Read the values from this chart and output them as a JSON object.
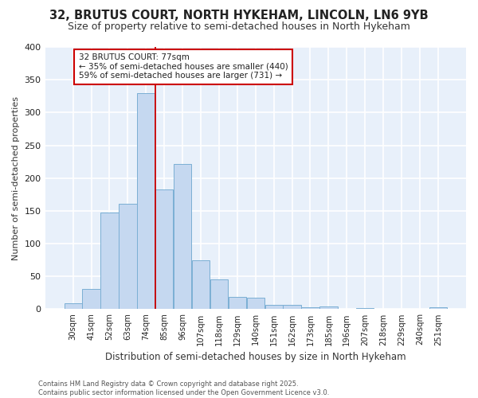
{
  "title": "32, BRUTUS COURT, NORTH HYKEHAM, LINCOLN, LN6 9YB",
  "subtitle": "Size of property relative to semi-detached houses in North Hykeham",
  "xlabel": "Distribution of semi-detached houses by size in North Hykeham",
  "ylabel": "Number of semi-detached properties",
  "bar_labels": [
    "30sqm",
    "41sqm",
    "52sqm",
    "63sqm",
    "74sqm",
    "85sqm",
    "96sqm",
    "107sqm",
    "118sqm",
    "129sqm",
    "140sqm",
    "151sqm",
    "162sqm",
    "173sqm",
    "185sqm",
    "196sqm",
    "207sqm",
    "218sqm",
    "229sqm",
    "240sqm",
    "251sqm"
  ],
  "bar_values": [
    9,
    31,
    148,
    161,
    330,
    183,
    222,
    74,
    45,
    19,
    18,
    6,
    7,
    3,
    4,
    0,
    2,
    0,
    0,
    0,
    3
  ],
  "bar_color": "#c5d8f0",
  "bar_edge_color": "#7bafd4",
  "background_color": "#e8f0fa",
  "grid_color": "#ffffff",
  "annotation_text": "32 BRUTUS COURT: 77sqm\n← 35% of semi-detached houses are smaller (440)\n59% of semi-detached houses are larger (731) →",
  "annotation_box_color": "#ffffff",
  "annotation_border_color": "#cc0000",
  "footer_text": "Contains HM Land Registry data © Crown copyright and database right 2025.\nContains public sector information licensed under the Open Government Licence v3.0.",
  "ylim": [
    0,
    400
  ],
  "red_line_color": "#cc0000",
  "title_fontsize": 10.5,
  "subtitle_fontsize": 9,
  "fig_bg": "#ffffff"
}
